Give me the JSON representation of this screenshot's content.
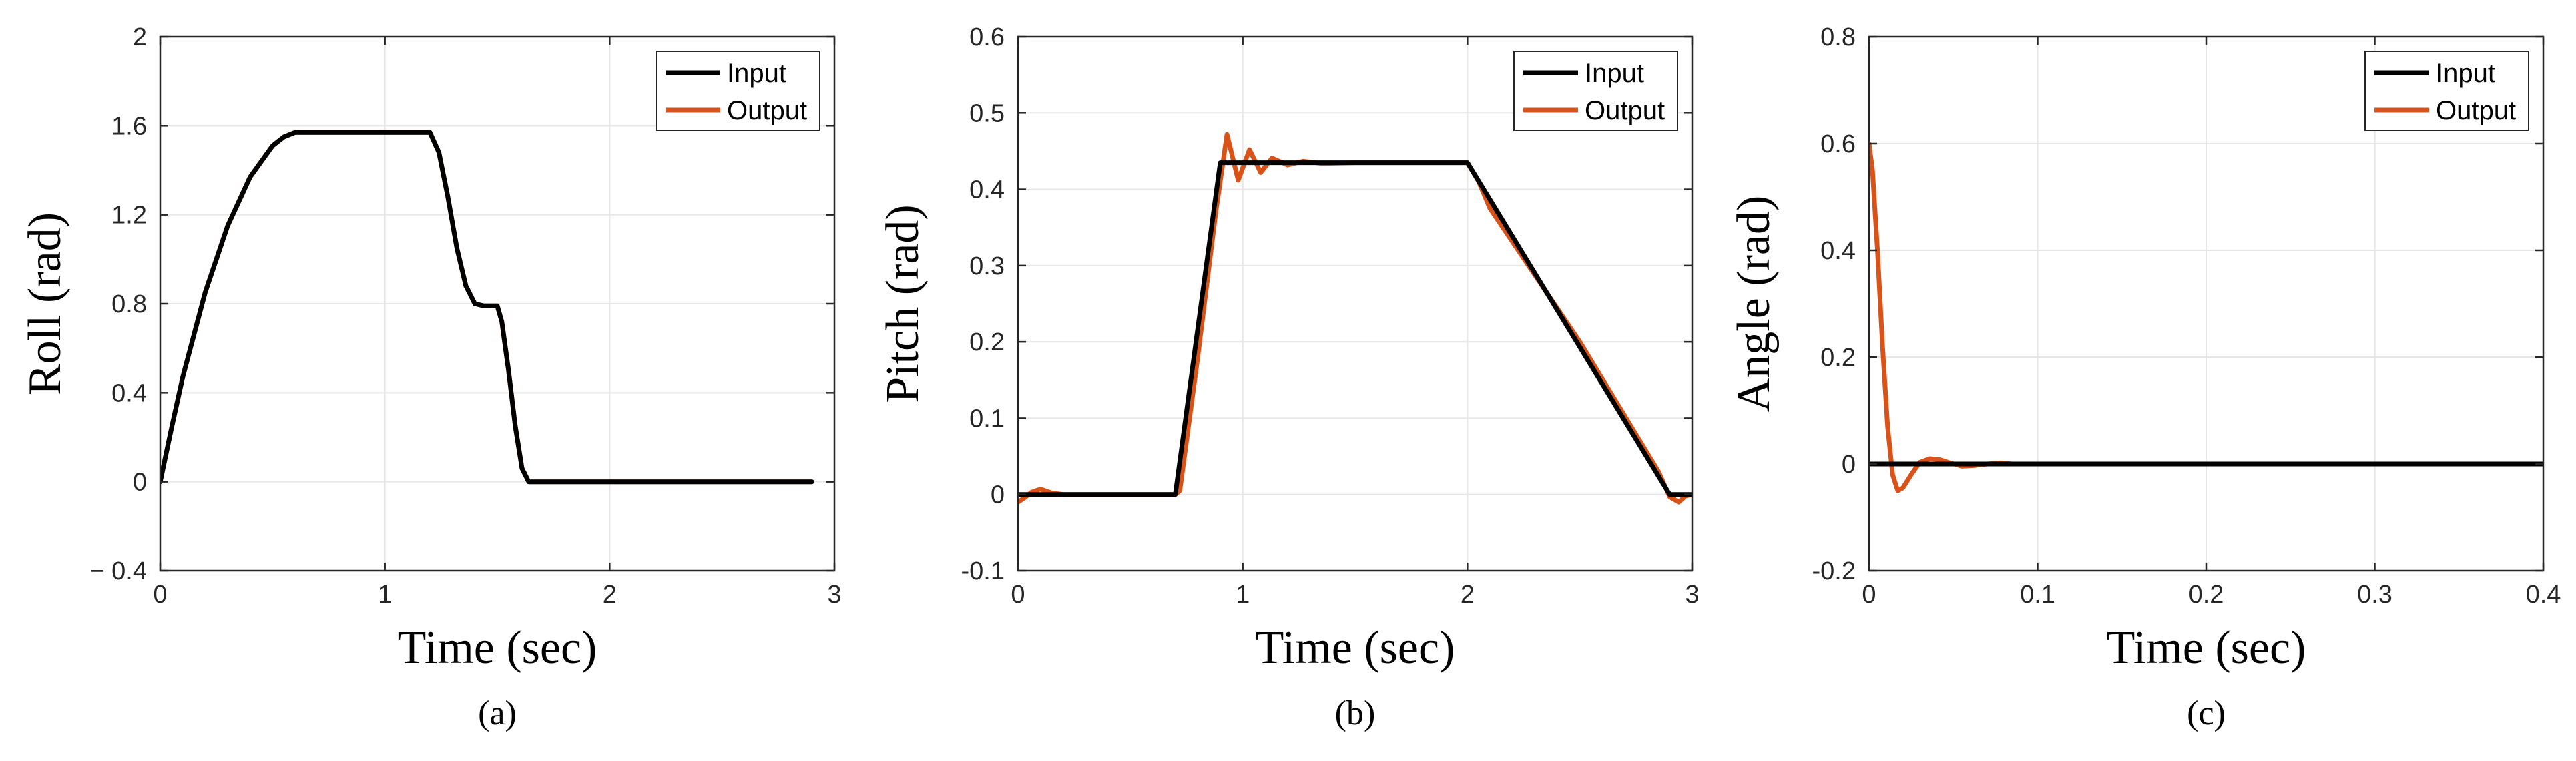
{
  "chart_data": [
    {
      "type": "line",
      "caption": "(a)",
      "xlabel": "Time (sec)",
      "ylabel": "Roll (rad)",
      "xlim": [
        0,
        3
      ],
      "ylim": [
        -0.4,
        2
      ],
      "xticks": [
        0,
        1,
        2,
        3
      ],
      "xtick_labels": [
        "0",
        "1",
        "2",
        "3"
      ],
      "yticks": [
        -0.4,
        0,
        0.4,
        0.8,
        1.2,
        1.6,
        2
      ],
      "ytick_labels": [
        "− 0.4",
        "0",
        "0.4",
        "0.8",
        "1.2",
        "1.6",
        "2"
      ],
      "grid": true,
      "legend_position": "top-right",
      "series": [
        {
          "name": "Input",
          "color": "#000000",
          "x": [
            0,
            0.05,
            0.1,
            0.2,
            0.3,
            0.4,
            0.5,
            0.55,
            0.6,
            0.7,
            0.9,
            1.1,
            1.2,
            1.24,
            1.28,
            1.32,
            1.36,
            1.4,
            1.44,
            1.5,
            1.52,
            1.55,
            1.58,
            1.61,
            1.64,
            1.7,
            2.0,
            2.5,
            2.9
          ],
          "y": [
            0,
            0.24,
            0.47,
            0.85,
            1.15,
            1.37,
            1.51,
            1.55,
            1.57,
            1.57,
            1.57,
            1.57,
            1.57,
            1.48,
            1.28,
            1.05,
            0.88,
            0.8,
            0.79,
            0.79,
            0.72,
            0.5,
            0.25,
            0.06,
            0,
            0,
            0,
            0,
            0
          ]
        },
        {
          "name": "Output",
          "color": "#d95319",
          "x": [
            0,
            0.05,
            0.1,
            0.2,
            0.3,
            0.4,
            0.5,
            0.55,
            0.6,
            0.7,
            0.9,
            1.1,
            1.2,
            1.24,
            1.28,
            1.32,
            1.36,
            1.4,
            1.44,
            1.5,
            1.52,
            1.55,
            1.58,
            1.61,
            1.64,
            1.7,
            2.0,
            2.5,
            2.9
          ],
          "y": [
            0,
            0.24,
            0.47,
            0.85,
            1.15,
            1.37,
            1.51,
            1.55,
            1.57,
            1.57,
            1.57,
            1.57,
            1.57,
            1.48,
            1.28,
            1.05,
            0.88,
            0.8,
            0.79,
            0.79,
            0.72,
            0.5,
            0.25,
            0.06,
            0,
            0,
            0,
            0,
            0
          ]
        }
      ]
    },
    {
      "type": "line",
      "caption": "(b)",
      "xlabel": "Time (sec)",
      "ylabel": "Pitch (rad)",
      "xlim": [
        0,
        3
      ],
      "ylim": [
        -0.1,
        0.6
      ],
      "xticks": [
        0,
        1,
        2,
        3
      ],
      "xtick_labels": [
        "0",
        "1",
        "2",
        "3"
      ],
      "yticks": [
        -0.1,
        0,
        0.1,
        0.2,
        0.3,
        0.4,
        0.5,
        0.6
      ],
      "ytick_labels": [
        "-0.1",
        "0",
        "0.1",
        "0.2",
        "0.3",
        "0.4",
        "0.5",
        "0.6"
      ],
      "grid": true,
      "legend_position": "top-right",
      "series": [
        {
          "name": "Input",
          "color": "#000000",
          "x": [
            0,
            0.7,
            0.9,
            2.0,
            2.9,
            3.0
          ],
          "y": [
            0,
            0,
            0.435,
            0.435,
            0,
            0
          ]
        },
        {
          "name": "Output",
          "color": "#d95319",
          "x": [
            0,
            0.03,
            0.06,
            0.1,
            0.15,
            0.2,
            0.4,
            0.7,
            0.72,
            0.8,
            0.88,
            0.93,
            0.98,
            1.03,
            1.08,
            1.13,
            1.2,
            1.27,
            1.35,
            1.5,
            2.0,
            2.05,
            2.1,
            2.5,
            2.85,
            2.9,
            2.94,
            2.97,
            3.0
          ],
          "y": [
            -0.01,
            -0.004,
            0.003,
            0.007,
            0.002,
            0,
            0,
            0,
            0.005,
            0.18,
            0.37,
            0.472,
            0.412,
            0.452,
            0.422,
            0.441,
            0.432,
            0.437,
            0.434,
            0.435,
            0.435,
            0.41,
            0.375,
            0.2,
            0.03,
            -0.003,
            -0.01,
            -0.002,
            0
          ]
        }
      ]
    },
    {
      "type": "line",
      "caption": "(c)",
      "xlabel": "Time (sec)",
      "ylabel": "Angle (rad)",
      "xlim": [
        0,
        0.4
      ],
      "ylim": [
        -0.2,
        0.8
      ],
      "xticks": [
        0,
        0.1,
        0.2,
        0.3,
        0.4
      ],
      "xtick_labels": [
        "0",
        "0.1",
        "0.2",
        "0.3",
        "0.4"
      ],
      "yticks": [
        -0.2,
        0,
        0.2,
        0.4,
        0.6,
        0.8
      ],
      "ytick_labels": [
        "-0.2",
        "0",
        "0.2",
        "0.4",
        "0.6",
        "0.8"
      ],
      "grid": true,
      "legend_position": "top-right",
      "series": [
        {
          "name": "Input",
          "color": "#000000",
          "x": [
            0,
            0.4
          ],
          "y": [
            0,
            0
          ]
        },
        {
          "name": "Output",
          "color": "#d95319",
          "x": [
            0,
            0.002,
            0.005,
            0.008,
            0.011,
            0.014,
            0.017,
            0.02,
            0.025,
            0.03,
            0.036,
            0.042,
            0.048,
            0.055,
            0.062,
            0.07,
            0.078,
            0.085,
            0.1,
            0.2,
            0.4
          ],
          "y": [
            0.6,
            0.55,
            0.4,
            0.22,
            0.07,
            -0.02,
            -0.05,
            -0.045,
            -0.02,
            0.003,
            0.01,
            0.008,
            0.002,
            -0.004,
            -0.003,
            0,
            0.002,
            0,
            0,
            0,
            0
          ]
        }
      ]
    }
  ]
}
